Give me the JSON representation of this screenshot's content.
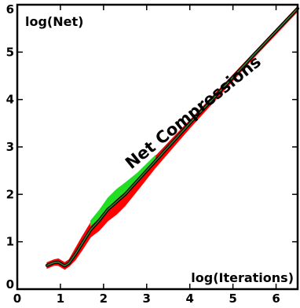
{
  "chart_data": {
    "type": "line",
    "title": "",
    "xlabel": "log(Iterations)",
    "ylabel": "log(Net)",
    "annotation": "Net Compressions",
    "xlim": [
      0,
      6.5
    ],
    "ylim": [
      0,
      6
    ],
    "xticks": [
      "0",
      "1",
      "2",
      "3",
      "4",
      "5",
      "6"
    ],
    "yticks": [
      "0",
      "1",
      "2",
      "3",
      "4",
      "5",
      "6"
    ],
    "grid": false,
    "colors": {
      "band_red": "#ff0000",
      "band_green": "#22dd22",
      "band_black": "#000000",
      "median_line": "#3a7a2a"
    },
    "series": [
      {
        "role": "red-band-upper",
        "x": [
          0.69,
          0.85,
          0.95,
          1.1,
          1.2,
          1.35,
          1.5,
          1.7,
          1.9,
          2.1,
          2.3,
          2.5,
          2.8,
          3.2,
          3.6,
          4.0,
          4.5,
          5.0,
          5.5,
          6.0,
          6.5
        ],
        "y": [
          0.56,
          0.62,
          0.64,
          0.56,
          0.62,
          0.86,
          1.1,
          1.4,
          1.62,
          1.86,
          2.04,
          2.2,
          2.44,
          2.8,
          3.18,
          3.56,
          4.04,
          4.52,
          5.0,
          5.48,
          5.96
        ]
      },
      {
        "role": "red-band-lower",
        "x": [
          0.69,
          0.85,
          0.95,
          1.1,
          1.2,
          1.35,
          1.5,
          1.7,
          1.9,
          2.1,
          2.3,
          2.5,
          2.8,
          3.2,
          3.6,
          4.0,
          4.5,
          5.0,
          5.5,
          6.0,
          6.5
        ],
        "y": [
          0.44,
          0.5,
          0.5,
          0.42,
          0.48,
          0.62,
          0.82,
          1.1,
          1.24,
          1.44,
          1.58,
          1.76,
          2.1,
          2.56,
          2.98,
          3.4,
          3.9,
          4.4,
          4.9,
          5.38,
          5.86
        ]
      },
      {
        "role": "green-band-upper",
        "x": [
          1.7,
          1.9,
          2.1,
          2.3,
          2.5,
          2.8,
          3.2
        ],
        "y": [
          1.44,
          1.66,
          1.92,
          2.1,
          2.24,
          2.46,
          2.82
        ]
      },
      {
        "role": "green-band-lower",
        "x": [
          1.7,
          1.9,
          2.1,
          2.3,
          2.5,
          2.8,
          3.2
        ],
        "y": [
          1.34,
          1.5,
          1.72,
          1.9,
          2.06,
          2.34,
          2.74
        ]
      },
      {
        "role": "median",
        "x": [
          0.69,
          0.85,
          0.95,
          1.1,
          1.2,
          1.35,
          1.5,
          1.7,
          1.9,
          2.1,
          2.3,
          2.5,
          2.8,
          3.2,
          3.6,
          4.0,
          4.5,
          5.0,
          5.5,
          6.0,
          6.5
        ],
        "y": [
          0.5,
          0.56,
          0.57,
          0.49,
          0.55,
          0.74,
          0.96,
          1.25,
          1.45,
          1.68,
          1.84,
          2.0,
          2.3,
          2.7,
          3.1,
          3.5,
          3.98,
          4.47,
          4.96,
          5.44,
          5.92
        ]
      }
    ]
  }
}
